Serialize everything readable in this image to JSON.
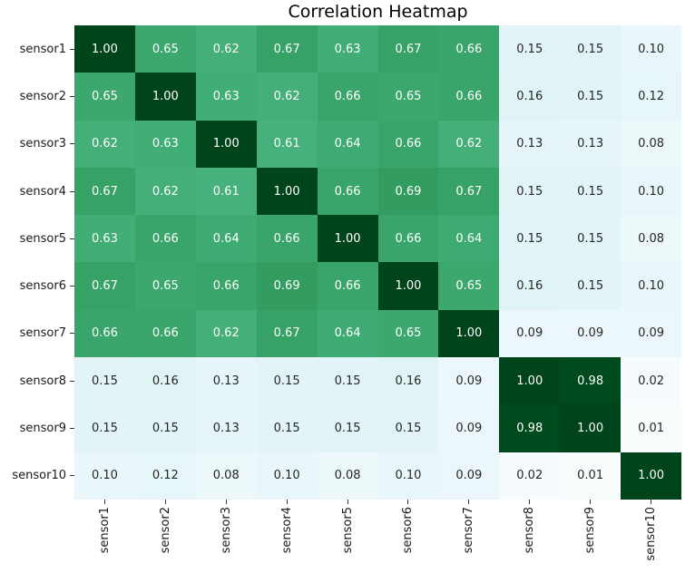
{
  "chart_data": {
    "type": "heatmap",
    "title": "Correlation Heatmap",
    "x_labels": [
      "sensor1",
      "sensor2",
      "sensor3",
      "sensor4",
      "sensor5",
      "sensor6",
      "sensor7",
      "sensor8",
      "sensor9",
      "sensor10"
    ],
    "y_labels": [
      "sensor1",
      "sensor2",
      "sensor3",
      "sensor4",
      "sensor5",
      "sensor6",
      "sensor7",
      "sensor8",
      "sensor9",
      "sensor10"
    ],
    "values": [
      [
        1.0,
        0.65,
        0.62,
        0.67,
        0.63,
        0.67,
        0.66,
        0.15,
        0.15,
        0.1
      ],
      [
        0.65,
        1.0,
        0.63,
        0.62,
        0.66,
        0.65,
        0.66,
        0.16,
        0.15,
        0.12
      ],
      [
        0.62,
        0.63,
        1.0,
        0.61,
        0.64,
        0.66,
        0.62,
        0.13,
        0.13,
        0.08
      ],
      [
        0.67,
        0.62,
        0.61,
        1.0,
        0.66,
        0.69,
        0.67,
        0.15,
        0.15,
        0.1
      ],
      [
        0.63,
        0.66,
        0.64,
        0.66,
        1.0,
        0.66,
        0.64,
        0.15,
        0.15,
        0.08
      ],
      [
        0.67,
        0.65,
        0.66,
        0.69,
        0.66,
        1.0,
        0.65,
        0.16,
        0.15,
        0.1
      ],
      [
        0.66,
        0.66,
        0.62,
        0.67,
        0.64,
        0.65,
        1.0,
        0.09,
        0.09,
        0.09
      ],
      [
        0.15,
        0.16,
        0.13,
        0.15,
        0.15,
        0.16,
        0.09,
        1.0,
        0.98,
        0.02
      ],
      [
        0.15,
        0.15,
        0.13,
        0.15,
        0.15,
        0.15,
        0.09,
        0.98,
        1.0,
        0.01
      ],
      [
        0.1,
        0.12,
        0.08,
        0.1,
        0.08,
        0.1,
        0.09,
        0.02,
        0.01,
        1.0
      ]
    ],
    "value_decimals": 2,
    "vmin": 0.01,
    "vmax": 1.0,
    "grid": false,
    "legend_position": "none",
    "colormap": {
      "name": "BuGn",
      "stops": [
        "#f7fcfd",
        "#e5f5f9",
        "#ccece6",
        "#99d8c9",
        "#66c2a4",
        "#41ae76",
        "#238b45",
        "#006d2c",
        "#00441b"
      ]
    },
    "annot_color_light": "#ffffff",
    "annot_color_dark": "#262626",
    "background_color": "#ffffff",
    "tick_color": "#333333",
    "label_color": "#1a1a1a",
    "title_color": "#000000"
  }
}
